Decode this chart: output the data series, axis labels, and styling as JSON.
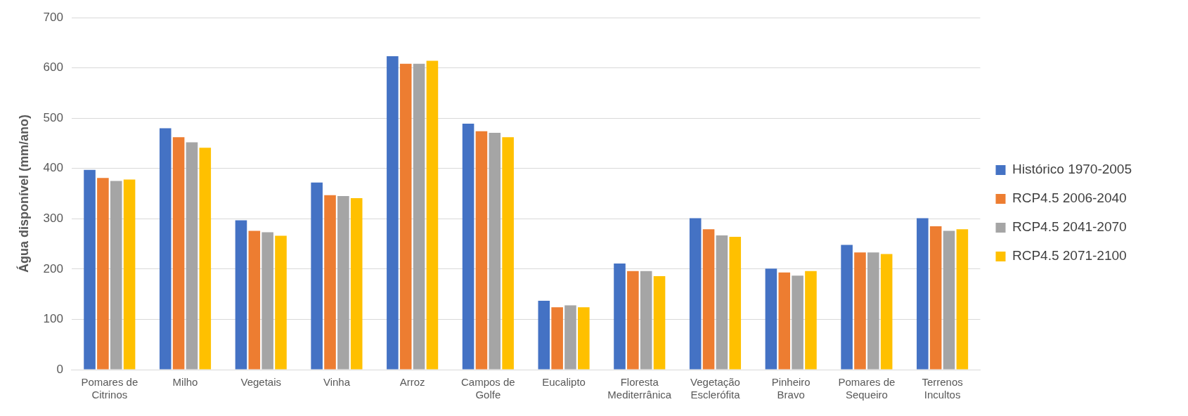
{
  "chart_data": {
    "type": "bar",
    "ylabel": "Água disponível (mm/ano)",
    "categories": [
      "Pomares de\nCitrinos",
      "Milho",
      "Vegetais",
      "Vinha",
      "Arroz",
      "Campos de\nGolfe",
      "Eucalipto",
      "Floresta\nMediterrânica",
      "Vegetação\nEsclerófita",
      "Pinheiro\nBravo",
      "Pomares de\nSequeiro",
      "Terrenos\nIncultos"
    ],
    "series": [
      {
        "name": "Histórico 1970-2005",
        "color": "#4472c4",
        "values": [
          397,
          480,
          297,
          372,
          623,
          489,
          137,
          211,
          301,
          201,
          248,
          301
        ]
      },
      {
        "name": "RCP4.5 2006-2040",
        "color": "#ed7d31",
        "values": [
          381,
          462,
          276,
          347,
          608,
          474,
          124,
          196,
          279,
          193,
          233,
          285
        ]
      },
      {
        "name": "RCP4.5 2041-2070",
        "color": "#a5a5a5",
        "values": [
          375,
          452,
          273,
          345,
          608,
          471,
          128,
          196,
          267,
          187,
          233,
          276
        ]
      },
      {
        "name": "RCP4.5 2071-2100",
        "color": "#ffc000",
        "values": [
          378,
          441,
          266,
          341,
          614,
          462,
          124,
          186,
          264,
          196,
          230,
          279
        ]
      }
    ],
    "ylim": [
      0,
      700
    ],
    "yticks": [
      0,
      100,
      200,
      300,
      400,
      500,
      600,
      700
    ],
    "grid": "y",
    "legend": "right"
  }
}
